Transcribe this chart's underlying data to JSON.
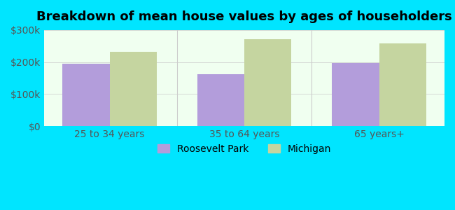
{
  "title": "Breakdown of mean house values by ages of householders",
  "categories": [
    "25 to 34 years",
    "35 to 64 years",
    "65 years+"
  ],
  "roosevelt_park": [
    195000,
    163000,
    198000
  ],
  "michigan": [
    232000,
    272000,
    258000
  ],
  "bar_color_rp": "#b39ddb",
  "bar_color_mi": "#c5d5a0",
  "ylim": [
    0,
    300000
  ],
  "yticks": [
    0,
    100000,
    200000,
    300000
  ],
  "ytick_labels": [
    "$0",
    "$100k",
    "$200k",
    "$300k"
  ],
  "background_color": "#00e5ff",
  "plot_bg_color_top": "#f0fff0",
  "plot_bg_color_bottom": "#ffffff",
  "legend_label_rp": "Roosevelt Park",
  "legend_label_mi": "Michigan",
  "title_fontsize": 13,
  "tick_fontsize": 10,
  "legend_fontsize": 10,
  "bar_width": 0.35
}
